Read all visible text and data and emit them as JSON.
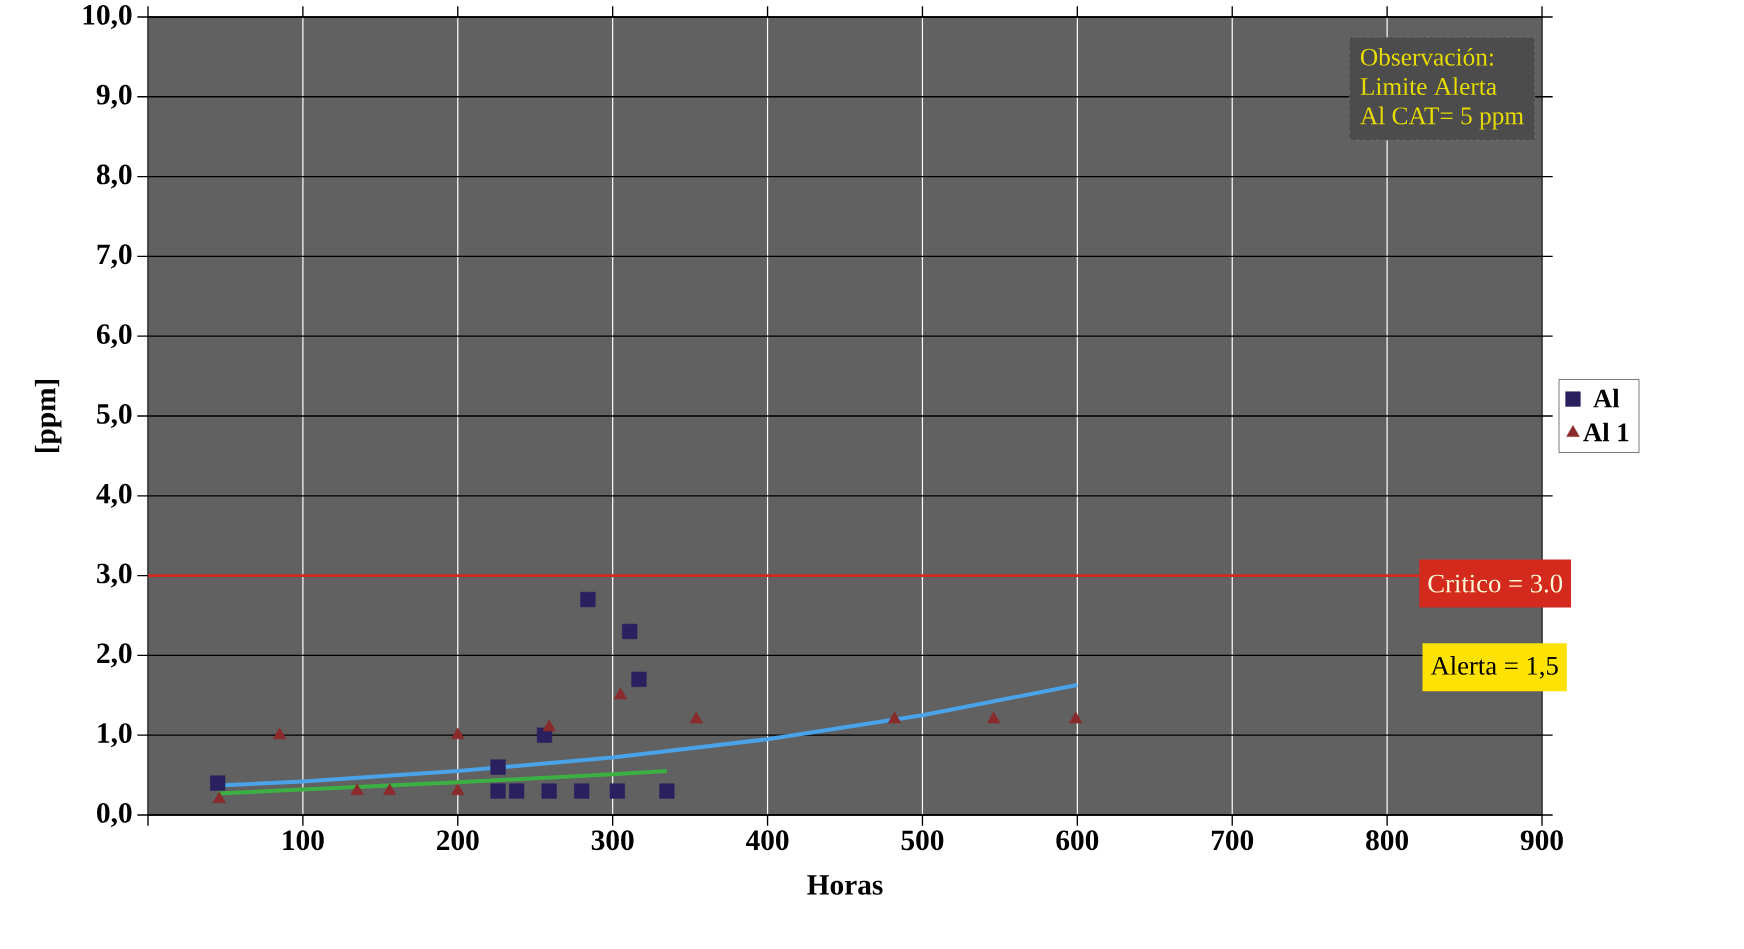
{
  "chart_data": {
    "type": "scatter",
    "xlabel": "Horas",
    "ylabel": "[ppm]",
    "xlim": [
      0,
      900
    ],
    "ylim": [
      0,
      10
    ],
    "xticks": [
      {
        "value": 0,
        "label": null
      },
      100,
      200,
      300,
      400,
      500,
      600,
      700,
      800,
      900
    ],
    "yticks": [
      {
        "value": 0,
        "label": "0,0"
      },
      {
        "value": 1,
        "label": "1,0"
      },
      {
        "value": 2,
        "label": "2,0"
      },
      {
        "value": 3,
        "label": "3,0"
      },
      {
        "value": 4,
        "label": "4,0"
      },
      {
        "value": 5,
        "label": "5,0"
      },
      {
        "value": 6,
        "label": "6,0"
      },
      {
        "value": 7,
        "label": "7,0"
      },
      {
        "value": 8,
        "label": "8,0"
      },
      {
        "value": 9,
        "label": "9,0"
      },
      {
        "value": 10,
        "label": "10,0"
      }
    ],
    "grid": true,
    "legend": "right",
    "series": [
      {
        "name": "Al",
        "color": "#2a2060",
        "marker": "square",
        "x": [
          45,
          226,
          226,
          238,
          256,
          259,
          280,
          284,
          303,
          311,
          317,
          335
        ],
        "values": [
          0.4,
          0.6,
          0.3,
          0.3,
          1.0,
          0.3,
          0.3,
          2.7,
          0.3,
          2.3,
          1.7,
          0.3
        ]
      },
      {
        "name": "Al 1",
        "color": "#8b2a2a",
        "marker": "triangle",
        "x": [
          46,
          85,
          135,
          156,
          200,
          200,
          259,
          305,
          354,
          482,
          546,
          599
        ],
        "values": [
          0.2,
          1.0,
          0.3,
          0.3,
          1.0,
          0.3,
          1.1,
          1.5,
          1.2,
          1.2,
          1.2,
          1.2
        ]
      },
      {
        "type": "line",
        "color": "#4aa3e8",
        "marker": "none",
        "x": [
          45,
          100,
          200,
          300,
          400,
          500,
          600
        ],
        "values": [
          0.37,
          0.42,
          0.55,
          0.72,
          0.95,
          1.25,
          1.63
        ]
      },
      {
        "type": "line",
        "color": "#3cb043",
        "marker": "none",
        "x": [
          45,
          100,
          200,
          300,
          335
        ],
        "values": [
          0.27,
          0.32,
          0.41,
          0.51,
          0.55
        ]
      }
    ],
    "ref_lines": [
      {
        "axis": "y",
        "value": 3,
        "label": "Critico = 3.0",
        "color": "#d42a1e"
      }
    ],
    "annotations": [
      "Observación:",
      "Limite Alerta",
      "Al CAT= 5 ppm",
      "Alerta = 1,5"
    ]
  }
}
